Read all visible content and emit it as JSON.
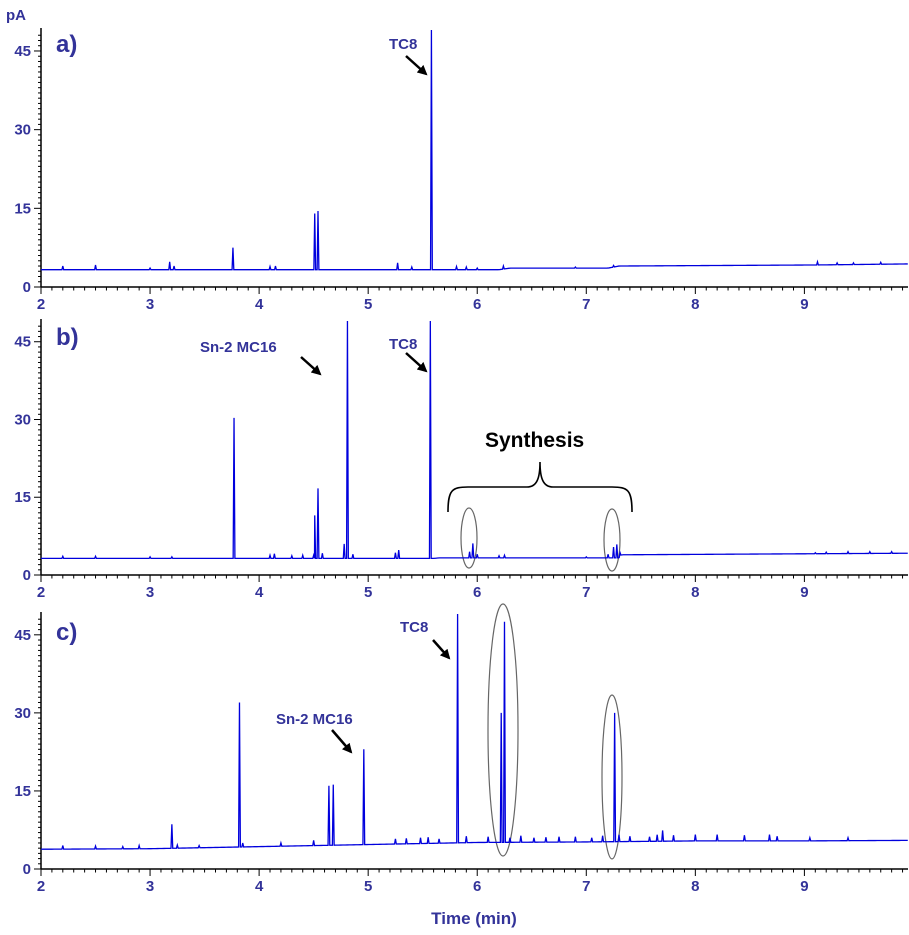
{
  "colors": {
    "trace": "#0000dd",
    "text": "#333399",
    "axis": "#000000",
    "highlight": "#ff3300",
    "ellipse": "#666666"
  },
  "chart_data": [
    {
      "type": "line",
      "panel": "a)",
      "ylabel": "pA",
      "xlabel": "",
      "xlim": [
        2,
        9.95
      ],
      "ylim": [
        0,
        49
      ],
      "xticks": [
        "2",
        "3",
        "4",
        "5",
        "6",
        "7",
        "8",
        "9"
      ],
      "yticks": [
        "0",
        "15",
        "30",
        "45"
      ],
      "baseline": [
        [
          2.0,
          3.3
        ],
        [
          6.2,
          3.3
        ],
        [
          6.3,
          3.6
        ],
        [
          7.2,
          3.6
        ],
        [
          7.3,
          4.0
        ],
        [
          9.1,
          4.2
        ],
        [
          9.95,
          4.4
        ]
      ],
      "peaks": [
        [
          2.2,
          4.0
        ],
        [
          2.5,
          4.2
        ],
        [
          3.0,
          3.6
        ],
        [
          3.18,
          4.8
        ],
        [
          3.22,
          4.0
        ],
        [
          3.76,
          7.5
        ],
        [
          4.1,
          3.9
        ],
        [
          4.15,
          4.0
        ],
        [
          4.51,
          14.0
        ],
        [
          4.54,
          14.5
        ],
        [
          5.27,
          4.6
        ],
        [
          5.4,
          3.8
        ],
        [
          5.58,
          49
        ],
        [
          5.81,
          3.9
        ],
        [
          5.9,
          3.8
        ],
        [
          6.0,
          3.6
        ],
        [
          6.24,
          4.0
        ],
        [
          6.9,
          3.8
        ],
        [
          7.25,
          4.1
        ],
        [
          9.12,
          4.8
        ],
        [
          9.3,
          4.6
        ],
        [
          9.45,
          4.6
        ],
        [
          9.7,
          4.7
        ]
      ],
      "annotations": [
        {
          "text": "TC8",
          "x": 5.58
        }
      ]
    },
    {
      "type": "line",
      "panel": "b)",
      "xlabel": "",
      "xlim": [
        2,
        9.95
      ],
      "ylim": [
        0,
        49
      ],
      "xticks": [
        "2",
        "3",
        "4",
        "5",
        "6",
        "7",
        "8",
        "9"
      ],
      "yticks": [
        "0",
        "15",
        "30",
        "45"
      ],
      "baseline": [
        [
          2.0,
          3.2
        ],
        [
          5.6,
          3.2
        ],
        [
          5.65,
          3.3
        ],
        [
          7.3,
          3.3
        ],
        [
          7.32,
          3.9
        ],
        [
          9.95,
          4.2
        ]
      ],
      "peaks": [
        [
          2.2,
          3.6
        ],
        [
          2.5,
          3.6
        ],
        [
          3.0,
          3.5
        ],
        [
          3.2,
          3.5
        ],
        [
          3.77,
          30.3
        ],
        [
          4.1,
          3.8
        ],
        [
          4.14,
          4.1
        ],
        [
          4.3,
          3.7
        ],
        [
          4.4,
          3.8
        ],
        [
          4.5,
          3.8
        ],
        [
          4.51,
          11.5
        ],
        [
          4.54,
          16.7
        ],
        [
          4.58,
          4.2
        ],
        [
          4.78,
          6.0
        ],
        [
          4.81,
          49
        ],
        [
          4.86,
          4.0
        ],
        [
          5.25,
          4.3
        ],
        [
          5.28,
          4.8
        ],
        [
          5.57,
          49
        ],
        [
          5.93,
          4.5
        ],
        [
          5.96,
          6.1
        ],
        [
          6.0,
          4.0
        ],
        [
          6.2,
          3.7
        ],
        [
          6.25,
          3.8
        ],
        [
          7.0,
          3.5
        ],
        [
          7.2,
          4.0
        ],
        [
          7.25,
          5.4
        ],
        [
          7.28,
          5.9
        ],
        [
          7.31,
          4.3
        ],
        [
          8.2,
          4.0
        ],
        [
          9.1,
          4.3
        ],
        [
          9.2,
          4.4
        ],
        [
          9.4,
          4.5
        ],
        [
          9.6,
          4.5
        ],
        [
          9.8,
          4.5
        ]
      ],
      "annotations": [
        {
          "text": "Sn-2 MC16",
          "x": 4.81
        },
        {
          "text": "TC8",
          "x": 5.57
        },
        {
          "text": "Synthesis",
          "x_start": 5.75,
          "x_end": 7.42
        }
      ],
      "highlight_regions": [
        [
          5.95,
          5.8
        ],
        [
          7.27,
          5.8
        ]
      ]
    },
    {
      "type": "line",
      "panel": "c)",
      "xlabel": "Time (min)",
      "xlim": [
        2,
        9.95
      ],
      "ylim": [
        0,
        49
      ],
      "xticks": [
        "2",
        "3",
        "4",
        "5",
        "6",
        "7",
        "8",
        "9"
      ],
      "yticks": [
        "0",
        "15",
        "30",
        "45"
      ],
      "baseline": [
        [
          2.0,
          3.8
        ],
        [
          3.0,
          3.9
        ],
        [
          3.5,
          4.1
        ],
        [
          4.0,
          4.3
        ],
        [
          5.0,
          4.7
        ],
        [
          6.0,
          5.1
        ],
        [
          7.0,
          5.2
        ],
        [
          8.0,
          5.4
        ],
        [
          9.0,
          5.4
        ],
        [
          9.95,
          5.5
        ]
      ],
      "peaks": [
        [
          2.2,
          4.5
        ],
        [
          2.5,
          4.4
        ],
        [
          2.75,
          4.3
        ],
        [
          2.9,
          4.5
        ],
        [
          3.2,
          8.6
        ],
        [
          3.25,
          4.6
        ],
        [
          3.45,
          4.5
        ],
        [
          3.82,
          32.0
        ],
        [
          3.85,
          5.0
        ],
        [
          4.2,
          5.0
        ],
        [
          4.5,
          5.5
        ],
        [
          4.64,
          16.0
        ],
        [
          4.68,
          16.2
        ],
        [
          4.96,
          23.0
        ],
        [
          5.25,
          5.8
        ],
        [
          5.35,
          5.9
        ],
        [
          5.48,
          6.0
        ],
        [
          5.55,
          6.1
        ],
        [
          5.65,
          5.8
        ],
        [
          5.82,
          49
        ],
        [
          5.9,
          6.3
        ],
        [
          6.1,
          6.2
        ],
        [
          6.22,
          30.0
        ],
        [
          6.25,
          47.5
        ],
        [
          6.3,
          6.0
        ],
        [
          6.4,
          6.4
        ],
        [
          6.52,
          6.0
        ],
        [
          6.63,
          6.1
        ],
        [
          6.75,
          6.2
        ],
        [
          6.9,
          6.2
        ],
        [
          7.05,
          6.0
        ],
        [
          7.15,
          6.4
        ],
        [
          7.26,
          30.0
        ],
        [
          7.3,
          6.6
        ],
        [
          7.4,
          6.3
        ],
        [
          7.58,
          6.2
        ],
        [
          7.65,
          6.6
        ],
        [
          7.7,
          7.4
        ],
        [
          7.8,
          6.5
        ],
        [
          8.0,
          6.6
        ],
        [
          8.2,
          6.6
        ],
        [
          8.45,
          6.5
        ],
        [
          8.68,
          6.6
        ],
        [
          8.75,
          6.3
        ],
        [
          9.05,
          6.0
        ],
        [
          9.4,
          6.0
        ]
      ],
      "annotations": [
        {
          "text": "Sn-2 MC16",
          "x": 4.96
        },
        {
          "text": "TC8",
          "x": 5.82
        }
      ],
      "highlight_regions": [
        [
          6.25,
          34.0
        ],
        [
          7.27,
          23.0
        ]
      ]
    }
  ]
}
